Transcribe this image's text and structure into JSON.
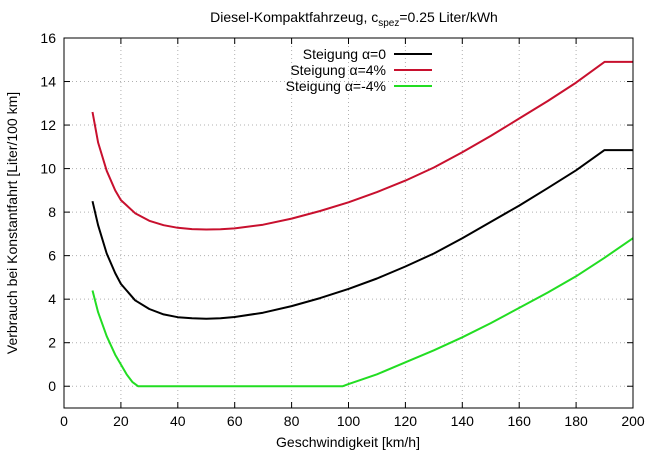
{
  "chart_data": {
    "type": "line",
    "title": "Diesel-Kompaktfahrzeug, c",
    "title_sub": "spez",
    "title_suffix": "=0.25 Liter/kWh",
    "xlabel": "Geschwindigkeit [km/h]",
    "ylabel": "Verbrauch bei Konstantfahrt [Liter/100 km]",
    "xlim": [
      0,
      200
    ],
    "ylim": [
      -1,
      16
    ],
    "xticks": [
      0,
      20,
      40,
      60,
      80,
      100,
      120,
      140,
      160,
      180,
      200
    ],
    "yticks": [
      0,
      2,
      4,
      6,
      8,
      10,
      12,
      14,
      16
    ],
    "grid": true,
    "legend_position": "top-center",
    "series": [
      {
        "name": "Steigung α=0",
        "color": "#000000",
        "x": [
          10,
          12,
          15,
          18,
          20,
          25,
          30,
          35,
          40,
          45,
          50,
          55,
          60,
          70,
          80,
          90,
          100,
          110,
          120,
          130,
          140,
          150,
          160,
          170,
          180,
          190,
          200
        ],
        "y": [
          8.5,
          7.4,
          6.1,
          5.2,
          4.7,
          3.95,
          3.55,
          3.3,
          3.17,
          3.12,
          3.1,
          3.12,
          3.18,
          3.38,
          3.68,
          4.05,
          4.47,
          4.95,
          5.5,
          6.1,
          6.8,
          7.55,
          8.3,
          9.1,
          9.92,
          10.85,
          10.85
        ]
      },
      {
        "name": "Steigung α=4%",
        "color": "#c8102e",
        "x": [
          10,
          12,
          15,
          18,
          20,
          25,
          30,
          35,
          40,
          45,
          50,
          55,
          60,
          70,
          80,
          90,
          100,
          110,
          120,
          130,
          140,
          150,
          160,
          170,
          180,
          190,
          200
        ],
        "y": [
          12.6,
          11.2,
          9.9,
          9.0,
          8.55,
          7.95,
          7.6,
          7.4,
          7.28,
          7.22,
          7.2,
          7.21,
          7.25,
          7.42,
          7.7,
          8.05,
          8.45,
          8.92,
          9.45,
          10.05,
          10.75,
          11.5,
          12.3,
          13.1,
          13.95,
          14.9,
          14.9
        ]
      },
      {
        "name": "Steigung α=-4%",
        "color": "#22dd22",
        "x": [
          10,
          12,
          15,
          18,
          20,
          22,
          24,
          26,
          30,
          40,
          50,
          60,
          70,
          80,
          90,
          98,
          100,
          110,
          120,
          130,
          140,
          150,
          160,
          170,
          180,
          190,
          200
        ],
        "y": [
          4.4,
          3.4,
          2.3,
          1.45,
          1.0,
          0.55,
          0.2,
          0.0,
          0.0,
          0.0,
          0.0,
          0.0,
          0.0,
          0.0,
          0.0,
          0.0,
          0.1,
          0.55,
          1.1,
          1.65,
          2.25,
          2.9,
          3.6,
          4.3,
          5.05,
          5.9,
          6.8
        ]
      }
    ]
  }
}
